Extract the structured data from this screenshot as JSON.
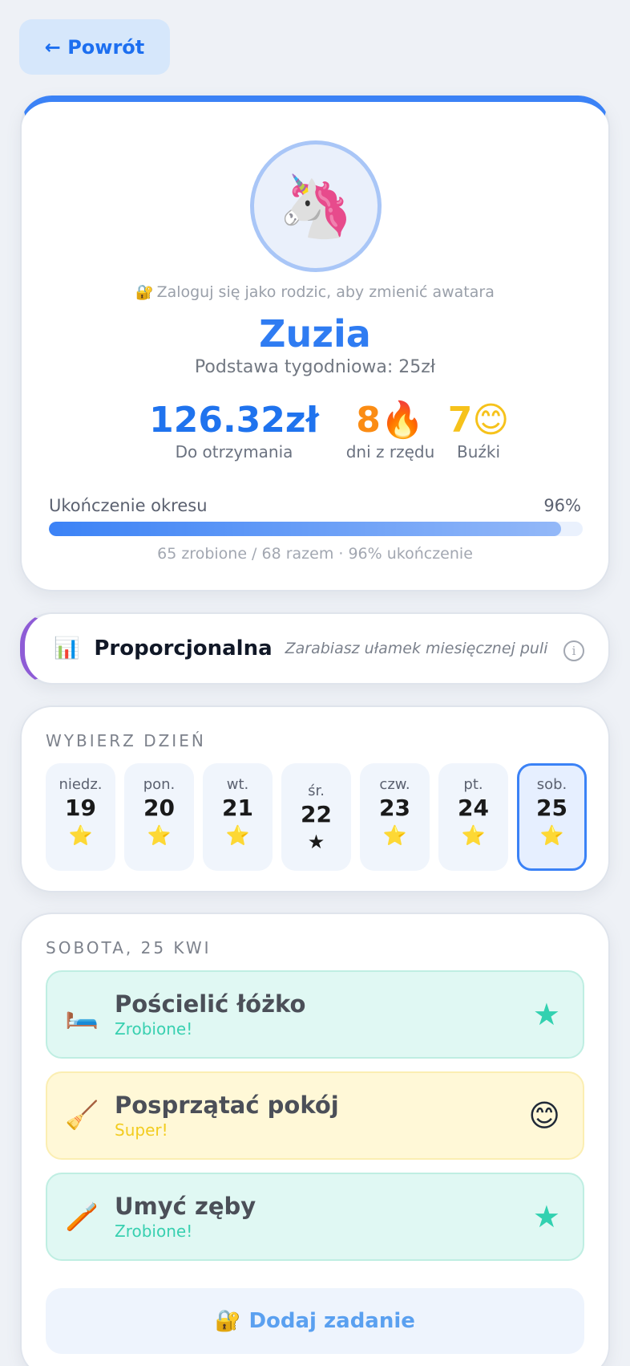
{
  "header": {
    "back_label": "← Powrót"
  },
  "profile": {
    "avatar_emoji": "🦄",
    "lock_icon": "🔐",
    "login_note": "Zaloguj się jako rodzic, aby zmienić awatara",
    "name": "Zuzia",
    "weekly_base": "Podstawa tygodniowa: 25zł",
    "stats": [
      {
        "value": "126.32zł",
        "label": "Do otrzymania"
      },
      {
        "value": "8🔥",
        "label": "dni z rzędu"
      },
      {
        "value": "7😊",
        "label": "Buźki"
      }
    ],
    "progress": {
      "label": "Ukończenie okresu",
      "percent_text": "96%",
      "fraction": 0.96,
      "detail": "65 zrobione / 68 razem · 96% ukończenie"
    }
  },
  "mode": {
    "icon": "📊",
    "title": "Proporcjonalna",
    "description": "Zarabiasz ułamek miesięcznej puli",
    "info_glyph": "i"
  },
  "day_picker": {
    "title": "WYBIERZ DZIEŃ",
    "days": [
      {
        "name": "niedz.",
        "date": "19",
        "mark": "⭐"
      },
      {
        "name": "pon.",
        "date": "20",
        "mark": "⭐"
      },
      {
        "name": "wt.",
        "date": "21",
        "mark": "⭐"
      },
      {
        "name": "śr.",
        "date": "22",
        "mark": "★"
      },
      {
        "name": "czw.",
        "date": "23",
        "mark": "⭐"
      },
      {
        "name": "pt.",
        "date": "24",
        "mark": "⭐"
      },
      {
        "name": "sob.",
        "date": "25",
        "mark": "⭐"
      }
    ],
    "selected_index": 6
  },
  "tasks": {
    "title": "SOBOTA, 25 KWI",
    "items": [
      {
        "icon": "🛏️",
        "name": "Pościelić łóżko",
        "status": "Zrobione!",
        "mark": "★"
      },
      {
        "icon": "🧹",
        "name": "Posprzątać pokój",
        "status": "Super!",
        "mark": "😊"
      },
      {
        "icon": "🪥",
        "name": "Umyć zęby",
        "status": "Zrobione!",
        "mark": "★"
      }
    ],
    "add": {
      "icon": "🔐",
      "label": "Dodaj zadanie"
    }
  },
  "colors": {
    "accent": "#3b82f6",
    "done": "#32d1b0",
    "super": "#f6c21b",
    "streak": "#fb8c14",
    "mode_border": "#8e5cd6"
  }
}
